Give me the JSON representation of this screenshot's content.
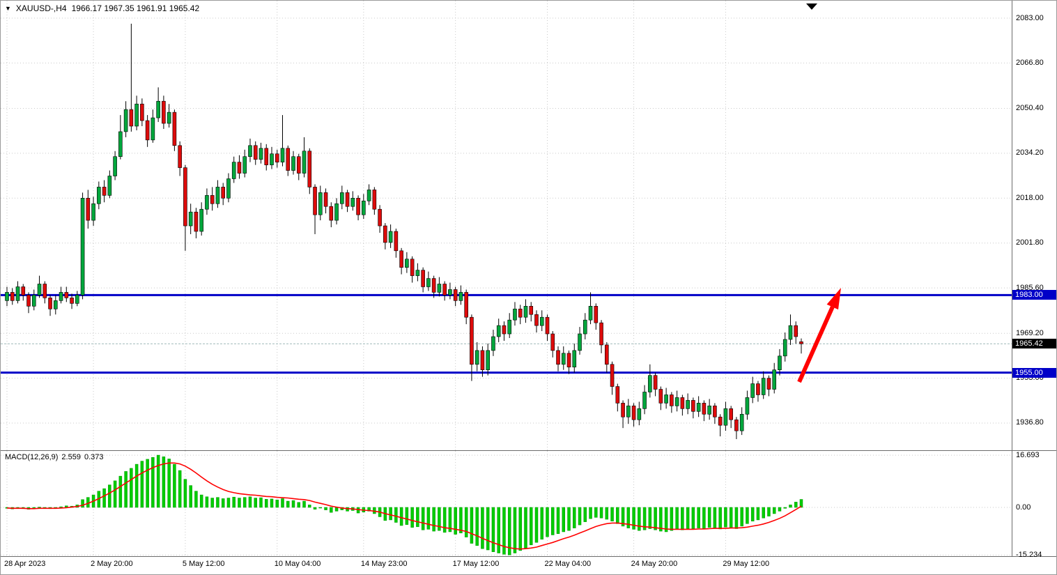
{
  "header": {
    "collapse_icon": "▼",
    "title": "XAUUSD-,H4",
    "ohlc": "1966.17 1967.35 1961.91 1965.42"
  },
  "chart_data": {
    "type": "candlestick",
    "symbol": "XAUUSD-",
    "timeframe": "H4",
    "price_axis": {
      "tick_labels": [
        "2083.00",
        "2066.80",
        "2050.40",
        "2034.20",
        "2018.00",
        "2001.80",
        "1985.60",
        "1969.20",
        "1953.00",
        "1936.80"
      ]
    },
    "time_axis": [
      {
        "label": "28 Apr 2023",
        "index": 0
      },
      {
        "label": "2 May 20:00",
        "index": 16
      },
      {
        "label": "5 May 12:00",
        "index": 33
      },
      {
        "label": "10 May 04:00",
        "index": 50
      },
      {
        "label": "14 May 23:00",
        "index": 66
      },
      {
        "label": "17 May 12:00",
        "index": 83
      },
      {
        "label": "22 May 04:00",
        "index": 100
      },
      {
        "label": "24 May 20:00",
        "index": 116
      },
      {
        "label": "29 May 12:00",
        "index": 133
      }
    ],
    "levels": [
      {
        "label": "1983.00",
        "value": 1983.0
      },
      {
        "label": "1955.00",
        "value": 1955.0
      }
    ],
    "current_price": {
      "label": "1965.42",
      "value": 1965.42
    },
    "candles": [
      [
        1981,
        1986,
        1979,
        1984
      ],
      [
        1984,
        1985.5,
        1979.5,
        1981
      ],
      [
        1981,
        1988,
        1980,
        1986
      ],
      [
        1986,
        1987,
        1981,
        1983
      ],
      [
        1983,
        1984,
        1976.5,
        1979
      ],
      [
        1979,
        1985,
        1977.5,
        1983
      ],
      [
        1983,
        1990,
        1982,
        1987
      ],
      [
        1987,
        1988,
        1980,
        1982
      ],
      [
        1982,
        1983,
        1975.5,
        1978
      ],
      [
        1978,
        1983,
        1976,
        1981
      ],
      [
        1981,
        1986,
        1980,
        1984
      ],
      [
        1984,
        1986,
        1980.5,
        1982
      ],
      [
        1982,
        1983.5,
        1978,
        1980
      ],
      [
        1980,
        1984.5,
        1979,
        1983
      ],
      [
        1983,
        2020,
        1981.5,
        2018
      ],
      [
        2018,
        2021,
        2007,
        2010
      ],
      [
        2010,
        2018.5,
        2008,
        2016
      ],
      [
        2016,
        2024,
        2014,
        2022
      ],
      [
        2022,
        2024.5,
        2016.5,
        2019
      ],
      [
        2019,
        2028,
        2018,
        2026
      ],
      [
        2026,
        2035,
        2024.5,
        2033
      ],
      [
        2033,
        2048,
        2032,
        2042
      ],
      [
        2042,
        2053,
        2040,
        2050
      ],
      [
        2050,
        2081,
        2042,
        2044
      ],
      [
        2044,
        2055,
        2042.5,
        2052
      ],
      [
        2052,
        2054,
        2044,
        2046
      ],
      [
        2046,
        2048,
        2036.5,
        2039
      ],
      [
        2039,
        2050,
        2038,
        2047
      ],
      [
        2047,
        2058,
        2045.5,
        2053
      ],
      [
        2053,
        2055,
        2043,
        2045
      ],
      [
        2045,
        2052,
        2043.5,
        2049
      ],
      [
        2049,
        2050,
        2035,
        2037
      ],
      [
        2037,
        2038.5,
        2026,
        2029
      ],
      [
        2029,
        2030,
        1999,
        2008
      ],
      [
        2008,
        2016,
        2005,
        2013
      ],
      [
        2013,
        2014.5,
        2003.5,
        2006
      ],
      [
        2006,
        2016.5,
        2004.5,
        2014
      ],
      [
        2014,
        2021.5,
        2012,
        2019
      ],
      [
        2019,
        2022,
        2013.5,
        2016
      ],
      [
        2016,
        2024.5,
        2014.5,
        2022
      ],
      [
        2022,
        2023.5,
        2015.5,
        2018
      ],
      [
        2018,
        2027,
        2016.5,
        2025
      ],
      [
        2025,
        2033,
        2023.5,
        2031
      ],
      [
        2031,
        2033.5,
        2025,
        2027
      ],
      [
        2027,
        2035.5,
        2025.5,
        2033
      ],
      [
        2033,
        2039.5,
        2031,
        2037
      ],
      [
        2037,
        2038.5,
        2030,
        2032
      ],
      [
        2032,
        2038,
        2030.5,
        2036
      ],
      [
        2036,
        2037.5,
        2028,
        2030
      ],
      [
        2030,
        2036.5,
        2028.5,
        2034
      ],
      [
        2034,
        2035.5,
        2029,
        2031
      ],
      [
        2031,
        2048,
        2029.5,
        2036
      ],
      [
        2036,
        2037,
        2026,
        2028
      ],
      [
        2028,
        2035,
        2026.5,
        2033
      ],
      [
        2033,
        2034,
        2024.5,
        2027
      ],
      [
        2027,
        2040,
        2025.5,
        2035
      ],
      [
        2035,
        2036,
        2019.5,
        2022
      ],
      [
        2022,
        2023,
        2005,
        2012
      ],
      [
        2012,
        2022.5,
        2010,
        2020
      ],
      [
        2020,
        2021.5,
        2012.5,
        2015
      ],
      [
        2015,
        2016.5,
        2007.5,
        2010
      ],
      [
        2010,
        2018,
        2008.5,
        2016
      ],
      [
        2016,
        2022.5,
        2014,
        2020
      ],
      [
        2020,
        2021,
        2013,
        2015
      ],
      [
        2015,
        2020.5,
        2013.5,
        2018
      ],
      [
        2018,
        2019,
        2010,
        2012
      ],
      [
        2012,
        2019.5,
        2010.5,
        2017
      ],
      [
        2017,
        2023,
        2015.5,
        2021
      ],
      [
        2021,
        2022,
        2012,
        2014
      ],
      [
        2014,
        2015.5,
        2005.5,
        2008
      ],
      [
        2008,
        2009,
        1999.5,
        2002
      ],
      [
        2002,
        2008.5,
        2000,
        2006
      ],
      [
        2006,
        2007,
        1996.5,
        1999
      ],
      [
        1999,
        2000,
        1990.5,
        1993
      ],
      [
        1993,
        1998.5,
        1991,
        1996
      ],
      [
        1996,
        1997,
        1987.5,
        1990
      ],
      [
        1990,
        1994.5,
        1988,
        1992
      ],
      [
        1992,
        1993,
        1984,
        1986
      ],
      [
        1986,
        1991.5,
        1984.5,
        1989
      ],
      [
        1989,
        1990,
        1982,
        1984
      ],
      [
        1984,
        1989.5,
        1982.5,
        1987
      ],
      [
        1987,
        1988,
        1981,
        1983
      ],
      [
        1983,
        1987.5,
        1981.5,
        1985
      ],
      [
        1985,
        1986,
        1979,
        1981
      ],
      [
        1981,
        1986.5,
        1979.5,
        1984
      ],
      [
        1984,
        1985,
        1972.5,
        1975
      ],
      [
        1975,
        1976,
        1952,
        1958
      ],
      [
        1958,
        1966,
        1955.5,
        1963
      ],
      [
        1963,
        1964.5,
        1953.5,
        1956
      ],
      [
        1956,
        1965.5,
        1954,
        1963
      ],
      [
        1963,
        1970.5,
        1961,
        1968
      ],
      [
        1968,
        1974.5,
        1966,
        1972
      ],
      [
        1972,
        1973.5,
        1966.5,
        1969
      ],
      [
        1969,
        1976.5,
        1967.5,
        1974
      ],
      [
        1974,
        1980.5,
        1972,
        1978
      ],
      [
        1978,
        1979.5,
        1972.5,
        1975
      ],
      [
        1975,
        1981.5,
        1973,
        1979
      ],
      [
        1979,
        1980.5,
        1973.5,
        1976
      ],
      [
        1976,
        1977.5,
        1969.5,
        1972
      ],
      [
        1972,
        1977.5,
        1970,
        1975
      ],
      [
        1975,
        1976,
        1966.5,
        1969
      ],
      [
        1969,
        1970,
        1960.5,
        1963
      ],
      [
        1963,
        1964.5,
        1955.5,
        1958
      ],
      [
        1958,
        1964.5,
        1956,
        1962
      ],
      [
        1962,
        1963,
        1954.5,
        1957
      ],
      [
        1957,
        1965.5,
        1955,
        1963
      ],
      [
        1963,
        1971.5,
        1961.5,
        1969
      ],
      [
        1969,
        1976.5,
        1967,
        1974
      ],
      [
        1974,
        1984,
        1972.5,
        1979
      ],
      [
        1979,
        1980,
        1970.5,
        1973
      ],
      [
        1973,
        1974,
        1962,
        1965
      ],
      [
        1965,
        1966,
        1955,
        1958
      ],
      [
        1958,
        1959,
        1947,
        1950
      ],
      [
        1950,
        1951,
        1941,
        1944
      ],
      [
        1944,
        1945,
        1935,
        1939
      ],
      [
        1939,
        1945.5,
        1936.5,
        1943
      ],
      [
        1943,
        1944,
        1935.5,
        1938
      ],
      [
        1938,
        1944.5,
        1936,
        1942
      ],
      [
        1942,
        1950.5,
        1940,
        1948
      ],
      [
        1948,
        1958,
        1946,
        1954
      ],
      [
        1954,
        1955,
        1946.5,
        1949
      ],
      [
        1949,
        1950,
        1941.5,
        1944
      ],
      [
        1944,
        1949.5,
        1942,
        1947
      ],
      [
        1947,
        1948,
        1940.5,
        1943
      ],
      [
        1943,
        1948.5,
        1941,
        1946
      ],
      [
        1946,
        1947,
        1939.5,
        1942
      ],
      [
        1942,
        1947.5,
        1940,
        1945
      ],
      [
        1945,
        1946,
        1938.5,
        1941
      ],
      [
        1941,
        1946.5,
        1939,
        1944
      ],
      [
        1944,
        1945,
        1937.5,
        1940
      ],
      [
        1940,
        1945.5,
        1938,
        1943
      ],
      [
        1943,
        1944,
        1936.5,
        1939
      ],
      [
        1939,
        1940,
        1932,
        1936
      ],
      [
        1936,
        1944.5,
        1934,
        1942
      ],
      [
        1942,
        1943,
        1935,
        1938
      ],
      [
        1938,
        1939,
        1931,
        1934
      ],
      [
        1934,
        1942.5,
        1932.5,
        1940
      ],
      [
        1940,
        1948.5,
        1938,
        1946
      ],
      [
        1946,
        1953.5,
        1944,
        1951
      ],
      [
        1951,
        1952,
        1944.5,
        1947
      ],
      [
        1947,
        1955.5,
        1945.5,
        1953
      ],
      [
        1953,
        1954,
        1946.5,
        1949
      ],
      [
        1949,
        1958.5,
        1947.5,
        1956
      ],
      [
        1956,
        1963.5,
        1954,
        1961
      ],
      [
        1961,
        1969.5,
        1959,
        1967
      ],
      [
        1967,
        1976,
        1965,
        1972
      ],
      [
        1972,
        1973.5,
        1965.5,
        1968
      ],
      [
        1966.17,
        1967.35,
        1961.91,
        1965.42
      ]
    ],
    "macd": {
      "label": "MACD(12,26,9)",
      "main_value": "2.559",
      "signal_value": "0.373",
      "tick_labels": [
        "16.693",
        "0.00",
        "-15.234"
      ],
      "histogram": [
        -0.3,
        -0.5,
        -0.2,
        -0.4,
        -0.6,
        -0.3,
        0.1,
        -0.1,
        -0.4,
        -0.3,
        0.2,
        0.5,
        0.4,
        0.8,
        2.5,
        3.2,
        4.0,
        5.2,
        6.0,
        7.2,
        8.5,
        10.0,
        11.5,
        12.5,
        13.8,
        14.8,
        15.4,
        16.0,
        16.7,
        16.2,
        15.5,
        13.8,
        11.8,
        9.0,
        7.0,
        5.2,
        4.0,
        3.4,
        3.0,
        3.2,
        2.8,
        3.0,
        3.3,
        3.0,
        3.2,
        3.4,
        3.0,
        3.1,
        2.6,
        2.7,
        2.4,
        2.8,
        2.0,
        2.2,
        1.6,
        2.0,
        0.8,
        -0.6,
        -0.2,
        -0.8,
        -1.6,
        -1.2,
        -0.8,
        -1.2,
        -1.0,
        -1.8,
        -1.5,
        -1.2,
        -2.0,
        -3.0,
        -4.2,
        -4.0,
        -4.8,
        -5.8,
        -5.5,
        -6.4,
        -6.2,
        -7.2,
        -7.0,
        -7.6,
        -7.4,
        -8.0,
        -7.8,
        -8.6,
        -8.2,
        -9.5,
        -11.5,
        -12.2,
        -13.2,
        -13.6,
        -14.2,
        -14.6,
        -15.0,
        -15.2,
        -14.6,
        -13.8,
        -13.0,
        -12.0,
        -11.2,
        -10.2,
        -9.4,
        -8.8,
        -8.4,
        -7.8,
        -7.4,
        -6.6,
        -5.6,
        -4.6,
        -3.6,
        -3.2,
        -3.4,
        -3.8,
        -4.4,
        -5.2,
        -6.0,
        -6.6,
        -7.0,
        -7.4,
        -7.2,
        -6.8,
        -7.2,
        -7.6,
        -7.8,
        -7.4,
        -7.0,
        -7.2,
        -6.8,
        -7.0,
        -6.6,
        -6.8,
        -6.4,
        -6.6,
        -6.9,
        -6.3,
        -6.5,
        -6.8,
        -6.0,
        -5.2,
        -4.4,
        -4.0,
        -3.4,
        -2.8,
        -2.0,
        -1.2,
        -0.3,
        0.8,
        1.7,
        2.559
      ],
      "signal": [
        -0.2,
        -0.3,
        -0.3,
        -0.3,
        -0.4,
        -0.4,
        -0.3,
        -0.3,
        -0.3,
        -0.3,
        -0.2,
        -0.1,
        0.1,
        0.3,
        0.7,
        1.3,
        2.0,
        2.8,
        3.7,
        4.6,
        5.6,
        6.7,
        7.8,
        8.9,
        10.0,
        11.0,
        11.9,
        12.7,
        13.4,
        13.9,
        14.2,
        14.2,
        13.9,
        13.2,
        12.2,
        11.0,
        9.7,
        8.5,
        7.4,
        6.5,
        5.7,
        5.1,
        4.7,
        4.4,
        4.2,
        4.0,
        3.9,
        3.7,
        3.5,
        3.4,
        3.2,
        3.1,
        3.0,
        2.8,
        2.6,
        2.5,
        2.2,
        1.7,
        1.3,
        0.9,
        0.4,
        0.1,
        -0.2,
        -0.4,
        -0.5,
        -0.7,
        -0.9,
        -1.0,
        -1.2,
        -1.5,
        -2.0,
        -2.4,
        -2.8,
        -3.3,
        -3.7,
        -4.2,
        -4.6,
        -5.0,
        -5.4,
        -5.8,
        -6.1,
        -6.5,
        -6.7,
        -7.0,
        -7.3,
        -7.7,
        -8.4,
        -9.1,
        -9.9,
        -10.6,
        -11.3,
        -11.9,
        -12.5,
        -12.9,
        -13.2,
        -13.3,
        -13.2,
        -13.0,
        -12.7,
        -12.2,
        -11.7,
        -11.2,
        -10.6,
        -10.0,
        -9.5,
        -8.9,
        -8.2,
        -7.5,
        -6.8,
        -6.1,
        -5.6,
        -5.2,
        -5.0,
        -5.0,
        -5.2,
        -5.4,
        -5.7,
        -6.0,
        -6.2,
        -6.3,
        -6.5,
        -6.7,
        -6.9,
        -7.0,
        -7.0,
        -7.0,
        -7.0,
        -7.0,
        -6.9,
        -6.9,
        -6.8,
        -6.7,
        -6.7,
        -6.7,
        -6.6,
        -6.6,
        -6.5,
        -6.3,
        -6.0,
        -5.7,
        -5.3,
        -4.8,
        -4.2,
        -3.5,
        -2.7,
        -1.7,
        -0.7,
        0.373
      ]
    },
    "colors": {
      "bull": "#00a63c",
      "bear": "#dd0b0b",
      "wick": "#000000",
      "grid": "#c9c9c9",
      "level_blue": "#0000c8",
      "bid_line": "#9db8b8",
      "macd_hist": "#00cc00",
      "macd_hist_edge": "#009900",
      "macd_signal": "#ff0000",
      "arrow": "#ff0000"
    }
  }
}
